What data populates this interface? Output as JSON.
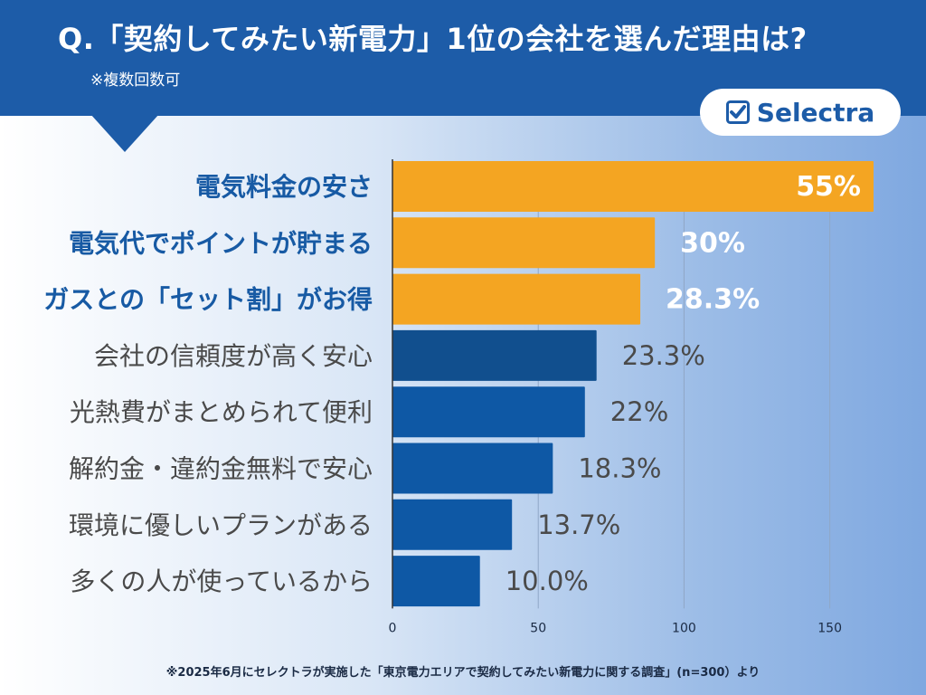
{
  "header": {
    "title": "Q.「契約してみたい新電力」1位の会社を選んだ理由は?",
    "subtitle": "※複数回数可",
    "brand": "Selectra",
    "brand_icon": "checkbox-check-icon"
  },
  "footnote": "※2025年6月にセレクトラが実施した「東京電力エリアで契約してみたい新電力に関する調査」(n=300）より",
  "colors": {
    "banner": "#1d5ca8",
    "highlight": "#f4a522",
    "bar": "#0e58a5",
    "bar_dark": "#114f8e",
    "label_highlight": "#175aa4",
    "label_normal": "#4a4a4a"
  },
  "chart_data": {
    "type": "bar",
    "orientation": "horizontal",
    "categories": [
      "電気料金の安さ",
      "電気代でポイントが貯まる",
      "ガスとの「セット割」がお得",
      "会社の信頼度が高く安心",
      "光熱費がまとめられて便利",
      "解約金・違約金無料で安心",
      "環境に優しいプランがある",
      "多くの人が使っているから"
    ],
    "values": [
      165,
      90,
      85,
      70,
      66,
      55,
      41,
      30
    ],
    "data_labels": [
      "55%",
      "30%",
      "28.3%",
      "23.3%",
      "22%",
      "18.3%",
      "13.7%",
      "10.0%"
    ],
    "highlighted": [
      true,
      true,
      true,
      false,
      false,
      false,
      false,
      false
    ],
    "xlim": [
      0,
      165
    ],
    "xticks": [
      0,
      50,
      100,
      150
    ],
    "grid": true,
    "legend": false
  }
}
